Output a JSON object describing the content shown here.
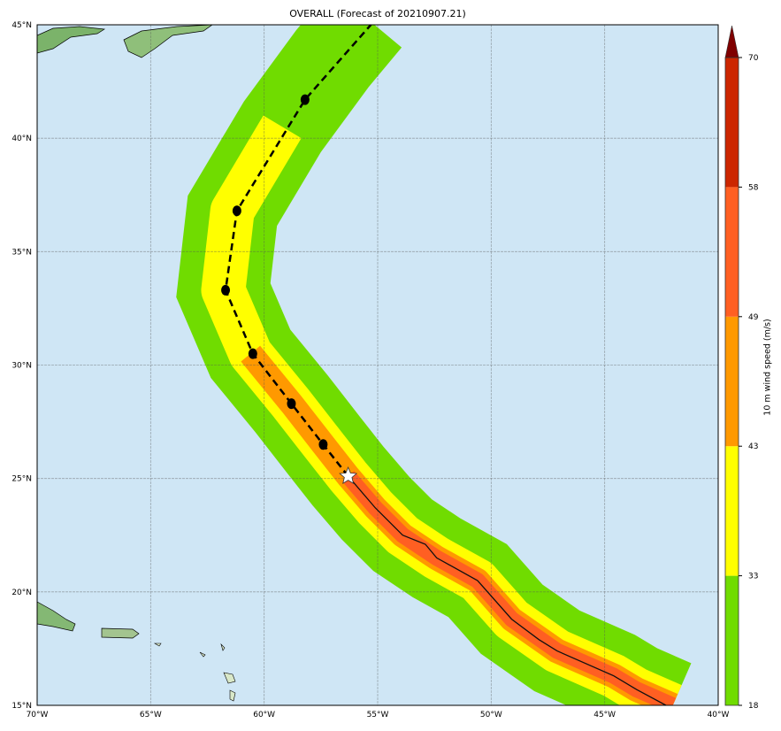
{
  "title": "OVERALL (Forecast of 20210907.21)",
  "map": {
    "lon_range": [
      -70,
      -40
    ],
    "lat_range": [
      15,
      45
    ],
    "gridlines": true,
    "ocean_color": "#cfe6f5",
    "lon_ticks": [
      {
        "value": -70,
        "label": "70°W"
      },
      {
        "value": -65,
        "label": "65°W"
      },
      {
        "value": -60,
        "label": "60°W"
      },
      {
        "value": -55,
        "label": "55°W"
      },
      {
        "value": -50,
        "label": "50°W"
      },
      {
        "value": -45,
        "label": "45°W"
      },
      {
        "value": -40,
        "label": "40°W"
      }
    ],
    "lat_ticks": [
      {
        "value": 15,
        "label": "15°N"
      },
      {
        "value": 20,
        "label": "20°N"
      },
      {
        "value": 25,
        "label": "25°N"
      },
      {
        "value": 30,
        "label": "30°N"
      },
      {
        "value": 35,
        "label": "35°N"
      },
      {
        "value": 40,
        "label": "40°N"
      },
      {
        "value": 45,
        "label": "45°N"
      }
    ],
    "forecast_track": [
      [
        -56.3,
        25.1
      ],
      [
        -57.4,
        26.5
      ],
      [
        -58.8,
        28.3
      ],
      [
        -60.5,
        30.5
      ],
      [
        -61.7,
        33.3
      ],
      [
        -61.2,
        36.8
      ],
      [
        -58.2,
        41.7
      ],
      [
        -55.3,
        45.0
      ]
    ],
    "forecast_markers": [
      [
        -57.4,
        26.5
      ],
      [
        -58.8,
        28.3
      ],
      [
        -60.5,
        30.5
      ],
      [
        -61.7,
        33.3
      ],
      [
        -61.2,
        36.8
      ],
      [
        -58.2,
        41.7
      ]
    ],
    "current_position": [
      -56.3,
      25.1
    ],
    "past_track": [
      [
        -56.3,
        25.1
      ],
      [
        -55.1,
        23.7
      ],
      [
        -53.9,
        22.5
      ],
      [
        -52.9,
        22.1
      ],
      [
        -52.4,
        21.5
      ],
      [
        -50.6,
        20.5
      ],
      [
        -49.1,
        18.8
      ],
      [
        -47.9,
        17.9
      ],
      [
        -47.1,
        17.4
      ],
      [
        -44.6,
        16.3
      ],
      [
        -43.6,
        15.7
      ],
      [
        -42.3,
        15.0
      ]
    ],
    "swath_centerline": [
      [
        -42.0,
        15.0
      ],
      [
        -43.6,
        15.7
      ],
      [
        -44.6,
        16.3
      ],
      [
        -47.1,
        17.4
      ],
      [
        -49.1,
        18.8
      ],
      [
        -50.6,
        20.5
      ],
      [
        -52.4,
        21.5
      ],
      [
        -53.9,
        22.5
      ],
      [
        -55.1,
        23.7
      ],
      [
        -56.3,
        25.1
      ],
      [
        -57.4,
        26.5
      ],
      [
        -58.8,
        28.3
      ],
      [
        -60.6,
        30.5
      ],
      [
        -61.8,
        33.3
      ],
      [
        -61.4,
        36.8
      ],
      [
        -59.2,
        40.5
      ],
      [
        -57.0,
        43.5
      ],
      [
        -55.5,
        45.3
      ]
    ]
  },
  "colorbar": {
    "label": "10 m wind speed (m/s)",
    "levels": [
      18,
      33,
      43,
      49,
      58,
      70
    ],
    "colors": [
      "#70dc00",
      "#ffff00",
      "#ff9900",
      "#ff5f22",
      "#cc2600"
    ],
    "extend_color": "#7f0000"
  }
}
